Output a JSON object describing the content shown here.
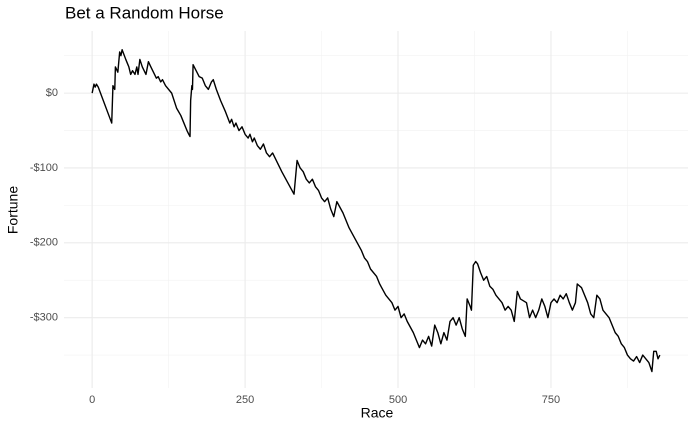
{
  "chart_data": {
    "type": "line",
    "title": "Bet a Random Horse",
    "x_label": "Race",
    "y_label": "Fortune",
    "x": [
      0,
      3,
      5,
      7,
      10,
      32,
      34,
      37,
      38,
      42,
      45,
      47,
      49,
      55,
      60,
      63,
      66,
      70,
      73,
      75,
      78,
      82,
      88,
      92,
      96,
      105,
      108,
      112,
      115,
      120,
      130,
      138,
      145,
      150,
      155,
      158,
      160,
      161,
      163,
      164,
      165,
      170,
      175,
      180,
      185,
      190,
      195,
      198,
      203,
      210,
      218,
      225,
      228,
      232,
      235,
      240,
      245,
      250,
      255,
      258,
      262,
      265,
      270,
      275,
      280,
      285,
      290,
      295,
      310,
      330,
      335,
      340,
      345,
      350,
      355,
      360,
      365,
      370,
      375,
      380,
      385,
      390,
      395,
      400,
      410,
      420,
      430,
      440,
      445,
      450,
      455,
      465,
      470,
      480,
      485,
      490,
      495,
      500,
      505,
      510,
      515,
      525,
      530,
      535,
      540,
      545,
      550,
      555,
      560,
      565,
      570,
      575,
      580,
      585,
      590,
      595,
      600,
      605,
      610,
      613,
      618,
      620,
      623,
      627,
      630,
      635,
      640,
      645,
      650,
      655,
      660,
      665,
      670,
      675,
      680,
      685,
      690,
      695,
      700,
      710,
      715,
      720,
      725,
      730,
      735,
      740,
      745,
      750,
      755,
      760,
      765,
      770,
      775,
      780,
      785,
      790,
      793,
      800,
      810,
      815,
      820,
      825,
      830,
      835,
      840,
      845,
      850,
      855,
      860,
      865,
      870,
      875,
      880,
      885,
      890,
      895,
      900,
      910,
      915,
      918,
      922,
      925,
      928
    ],
    "series": [
      {
        "color": "#000000",
        "values": [
          0,
          12,
          8,
          12,
          8,
          -40,
          10,
          5,
          35,
          28,
          55,
          50,
          58,
          45,
          35,
          25,
          30,
          25,
          35,
          25,
          45,
          35,
          25,
          42,
          35,
          20,
          22,
          15,
          18,
          10,
          0,
          -20,
          -30,
          -40,
          -50,
          -55,
          -58,
          -10,
          10,
          5,
          38,
          30,
          22,
          20,
          10,
          5,
          15,
          18,
          5,
          -10,
          -25,
          -40,
          -35,
          -45,
          -40,
          -50,
          -45,
          -55,
          -60,
          -55,
          -65,
          -60,
          -70,
          -75,
          -68,
          -80,
          -85,
          -80,
          -105,
          -135,
          -90,
          -100,
          -105,
          -115,
          -120,
          -115,
          -125,
          -130,
          -140,
          -145,
          -140,
          -155,
          -165,
          -145,
          -160,
          -180,
          -195,
          -210,
          -220,
          -225,
          -235,
          -245,
          -255,
          -270,
          -275,
          -280,
          -290,
          -285,
          -300,
          -295,
          -305,
          -320,
          -330,
          -340,
          -330,
          -335,
          -325,
          -338,
          -310,
          -320,
          -335,
          -320,
          -330,
          -305,
          -300,
          -310,
          -300,
          -315,
          -325,
          -275,
          -285,
          -290,
          -230,
          -225,
          -228,
          -240,
          -250,
          -245,
          -258,
          -262,
          -270,
          -275,
          -280,
          -290,
          -285,
          -290,
          -305,
          -265,
          -275,
          -280,
          -300,
          -290,
          -300,
          -290,
          -275,
          -285,
          -300,
          -280,
          -275,
          -280,
          -270,
          -275,
          -268,
          -280,
          -290,
          -280,
          -255,
          -260,
          -280,
          -295,
          -300,
          -270,
          -275,
          -290,
          -295,
          -300,
          -310,
          -320,
          -325,
          -335,
          -340,
          -350,
          -355,
          -358,
          -352,
          -360,
          -350,
          -360,
          -372,
          -345,
          -345,
          -355,
          -350
        ]
      }
    ],
    "xlim": [
      -46,
      974
    ],
    "ylim": [
      -394,
      83
    ],
    "xticks": [
      0,
      250,
      500,
      750
    ],
    "yticks": [
      {
        "value": 0,
        "label": "$0"
      },
      {
        "value": -100,
        "label": "-$100"
      },
      {
        "value": -200,
        "label": "-$200"
      },
      {
        "value": -300,
        "label": "-$300"
      }
    ],
    "x_minor_ticks": [
      125,
      375,
      625,
      875
    ],
    "y_minor_ticks": [
      50,
      -50,
      -150,
      -250,
      -350
    ],
    "grid": true
  }
}
